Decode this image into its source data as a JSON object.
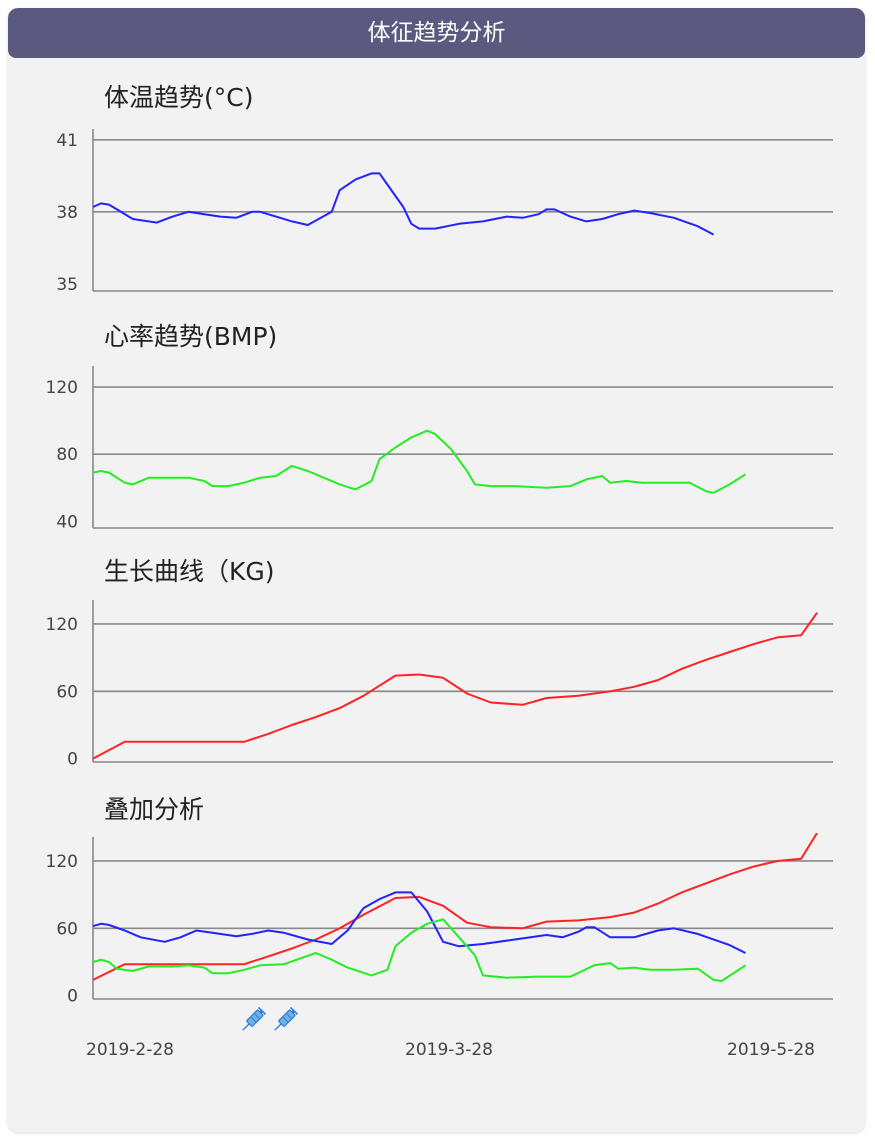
{
  "header": {
    "title": "体征趋势分析"
  },
  "panels": [
    {
      "title": "体温趋势(°C)"
    },
    {
      "title": "心率趋势(BMP)"
    },
    {
      "title": "生长曲线（KG)"
    },
    {
      "title": "叠加分析"
    }
  ],
  "x_labels": [
    "2019-2-28",
    "2019-3-28",
    "2019-5-28"
  ],
  "markers": [
    {
      "icon": "syringe-icon",
      "date": "2019-3-20"
    },
    {
      "icon": "syringe-icon",
      "date": "2019-3-24"
    }
  ],
  "colors": {
    "temperature": "#2222ff",
    "heart_rate": "#22ee22",
    "weight": "#ff2222",
    "header": "#5b5980"
  },
  "chart_data": [
    {
      "type": "line",
      "title": "体温趋势(°C)",
      "yticks": [
        41,
        38,
        35
      ],
      "ylim": [
        34.7,
        41.2
      ],
      "xlim": [
        "2019-2-28",
        "2019-6-1"
      ],
      "grid": true,
      "series": [
        {
          "color": "#2222ff",
          "points": [
            [
              "2019-2-28",
              38.2
            ],
            [
              "2019-3-1",
              38.35
            ],
            [
              "2019-3-2",
              38.3
            ],
            [
              "2019-3-3",
              38.1
            ],
            [
              "2019-3-5",
              37.7
            ],
            [
              "2019-3-8",
              37.55
            ],
            [
              "2019-3-10",
              37.8
            ],
            [
              "2019-3-12",
              38.0
            ],
            [
              "2019-3-14",
              37.9
            ],
            [
              "2019-3-16",
              37.8
            ],
            [
              "2019-3-18",
              37.75
            ],
            [
              "2019-3-20",
              38.0
            ],
            [
              "2019-3-21",
              38.0
            ],
            [
              "2019-3-23",
              37.8
            ],
            [
              "2019-3-25",
              37.6
            ],
            [
              "2019-3-27",
              37.45
            ],
            [
              "2019-3-30",
              38.0
            ],
            [
              "2019-3-31",
              38.9
            ],
            [
              "2019-4-2",
              39.35
            ],
            [
              "2019-4-4",
              39.6
            ],
            [
              "2019-4-5",
              39.6
            ],
            [
              "2019-4-8",
              38.2
            ],
            [
              "2019-4-9",
              37.5
            ],
            [
              "2019-4-10",
              37.3
            ],
            [
              "2019-4-12",
              37.3
            ],
            [
              "2019-4-15",
              37.5
            ],
            [
              "2019-4-18",
              37.6
            ],
            [
              "2019-4-21",
              37.8
            ],
            [
              "2019-4-23",
              37.75
            ],
            [
              "2019-4-25",
              37.9
            ],
            [
              "2019-4-26",
              38.1
            ],
            [
              "2019-4-27",
              38.1
            ],
            [
              "2019-4-29",
              37.8
            ],
            [
              "2019-5-1",
              37.6
            ],
            [
              "2019-5-3",
              37.7
            ],
            [
              "2019-5-5",
              37.9
            ],
            [
              "2019-5-7",
              38.05
            ],
            [
              "2019-5-9",
              37.95
            ],
            [
              "2019-5-12",
              37.75
            ],
            [
              "2019-5-15",
              37.4
            ],
            [
              "2019-5-17",
              37.05
            ]
          ]
        }
      ]
    },
    {
      "type": "line",
      "title": "心率趋势(BMP)",
      "yticks": [
        120,
        80,
        40
      ],
      "ylim": [
        36,
        129
      ],
      "xlim": [
        "2019-2-28",
        "2019-6-1"
      ],
      "grid": true,
      "series": [
        {
          "color": "#22ee22",
          "points": [
            [
              "2019-2-28",
              69
            ],
            [
              "2019-3-1",
              70
            ],
            [
              "2019-3-2",
              69
            ],
            [
              "2019-3-3",
              66
            ],
            [
              "2019-3-4",
              63
            ],
            [
              "2019-3-5",
              62
            ],
            [
              "2019-3-7",
              66
            ],
            [
              "2019-3-10",
              66
            ],
            [
              "2019-3-12",
              66
            ],
            [
              "2019-3-14",
              64
            ],
            [
              "2019-3-15",
              61
            ],
            [
              "2019-3-17",
              61
            ],
            [
              "2019-3-19",
              63
            ],
            [
              "2019-3-21",
              66
            ],
            [
              "2019-3-23",
              67
            ],
            [
              "2019-3-25",
              73
            ],
            [
              "2019-3-27",
              70
            ],
            [
              "2019-3-29",
              66
            ],
            [
              "2019-3-31",
              62
            ],
            [
              "2019-4-2",
              59
            ],
            [
              "2019-4-4",
              64
            ],
            [
              "2019-4-5",
              77
            ],
            [
              "2019-4-7",
              84
            ],
            [
              "2019-4-9",
              90
            ],
            [
              "2019-4-11",
              94
            ],
            [
              "2019-4-12",
              92
            ],
            [
              "2019-4-14",
              83
            ],
            [
              "2019-4-16",
              70
            ],
            [
              "2019-4-17",
              62
            ],
            [
              "2019-4-19",
              61
            ],
            [
              "2019-4-22",
              61
            ],
            [
              "2019-4-26",
              60
            ],
            [
              "2019-4-29",
              61
            ],
            [
              "2019-5-1",
              65
            ],
            [
              "2019-5-3",
              67
            ],
            [
              "2019-5-4",
              63
            ],
            [
              "2019-5-6",
              64
            ],
            [
              "2019-5-8",
              63
            ],
            [
              "2019-5-12",
              63
            ],
            [
              "2019-5-14",
              63
            ],
            [
              "2019-5-16",
              58
            ],
            [
              "2019-5-17",
              57
            ],
            [
              "2019-5-19",
              62
            ],
            [
              "2019-5-21",
              68
            ]
          ]
        }
      ]
    },
    {
      "type": "line",
      "title": "生长曲线（KG)",
      "yticks": [
        120,
        60,
        0
      ],
      "ylim": [
        -3,
        136
      ],
      "xlim": [
        "2019-2-28",
        "2019-6-1"
      ],
      "grid": true,
      "series": [
        {
          "color": "#ff2222",
          "points": [
            [
              "2019-2-28",
              0
            ],
            [
              "2019-3-4",
              15
            ],
            [
              "2019-3-8",
              15
            ],
            [
              "2019-3-12",
              15
            ],
            [
              "2019-3-16",
              15
            ],
            [
              "2019-3-19",
              15
            ],
            [
              "2019-3-22",
              22
            ],
            [
              "2019-3-25",
              30
            ],
            [
              "2019-3-28",
              37
            ],
            [
              "2019-3-31",
              45
            ],
            [
              "2019-4-3",
              56
            ],
            [
              "2019-4-7",
              74
            ],
            [
              "2019-4-10",
              75
            ],
            [
              "2019-4-13",
              72
            ],
            [
              "2019-4-16",
              58
            ],
            [
              "2019-4-19",
              50
            ],
            [
              "2019-4-23",
              48
            ],
            [
              "2019-4-26",
              54
            ],
            [
              "2019-4-30",
              56
            ],
            [
              "2019-5-4",
              60
            ],
            [
              "2019-5-7",
              64
            ],
            [
              "2019-5-10",
              70
            ],
            [
              "2019-5-13",
              80
            ],
            [
              "2019-5-16",
              88
            ],
            [
              "2019-5-19",
              95
            ],
            [
              "2019-5-22",
              102
            ],
            [
              "2019-5-25",
              108
            ],
            [
              "2019-5-28",
              110
            ],
            [
              "2019-5-30",
              130
            ]
          ]
        }
      ]
    },
    {
      "type": "line",
      "title": "叠加分析",
      "yticks": [
        120,
        60,
        0
      ],
      "ylim": [
        -3,
        136
      ],
      "xlim": [
        "2019-2-28",
        "2019-6-1"
      ],
      "grid": true,
      "series": [
        {
          "color": "#ff2222",
          "points": [
            [
              "2019-2-28",
              14
            ],
            [
              "2019-3-4",
              28
            ],
            [
              "2019-3-8",
              28
            ],
            [
              "2019-3-12",
              28
            ],
            [
              "2019-3-16",
              28
            ],
            [
              "2019-3-19",
              28
            ],
            [
              "2019-3-22",
              35
            ],
            [
              "2019-3-25",
              42
            ],
            [
              "2019-3-28",
              50
            ],
            [
              "2019-3-31",
              60
            ],
            [
              "2019-4-3",
              72
            ],
            [
              "2019-4-7",
              87
            ],
            [
              "2019-4-10",
              88
            ],
            [
              "2019-4-13",
              80
            ],
            [
              "2019-4-16",
              65
            ],
            [
              "2019-4-19",
              61
            ],
            [
              "2019-4-23",
              60
            ],
            [
              "2019-4-26",
              66
            ],
            [
              "2019-4-30",
              67
            ],
            [
              "2019-5-4",
              70
            ],
            [
              "2019-5-7",
              74
            ],
            [
              "2019-5-10",
              82
            ],
            [
              "2019-5-13",
              92
            ],
            [
              "2019-5-16",
              100
            ],
            [
              "2019-5-19",
              108
            ],
            [
              "2019-5-22",
              115
            ],
            [
              "2019-5-25",
              120
            ],
            [
              "2019-5-28",
              122
            ],
            [
              "2019-5-30",
              145
            ]
          ]
        },
        {
          "color": "#2222ff",
          "points": [
            [
              "2019-2-28",
              62
            ],
            [
              "2019-3-1",
              64
            ],
            [
              "2019-3-2",
              63
            ],
            [
              "2019-3-4",
              58
            ],
            [
              "2019-3-6",
              52
            ],
            [
              "2019-3-9",
              48
            ],
            [
              "2019-3-11",
              52
            ],
            [
              "2019-3-13",
              58
            ],
            [
              "2019-3-15",
              56
            ],
            [
              "2019-3-18",
              53
            ],
            [
              "2019-3-20",
              55
            ],
            [
              "2019-3-22",
              58
            ],
            [
              "2019-3-24",
              56
            ],
            [
              "2019-3-27",
              50
            ],
            [
              "2019-3-30",
              46
            ],
            [
              "2019-4-1",
              58
            ],
            [
              "2019-4-3",
              78
            ],
            [
              "2019-4-5",
              86
            ],
            [
              "2019-4-7",
              92
            ],
            [
              "2019-4-9",
              92
            ],
            [
              "2019-4-11",
              75
            ],
            [
              "2019-4-13",
              48
            ],
            [
              "2019-4-15",
              44
            ],
            [
              "2019-4-18",
              46
            ],
            [
              "2019-4-22",
              50
            ],
            [
              "2019-4-26",
              54
            ],
            [
              "2019-4-28",
              52
            ],
            [
              "2019-4-30",
              57
            ],
            [
              "2019-5-1",
              61
            ],
            [
              "2019-5-2",
              61
            ],
            [
              "2019-5-4",
              52
            ],
            [
              "2019-5-7",
              52
            ],
            [
              "2019-5-10",
              58
            ],
            [
              "2019-5-12",
              60
            ],
            [
              "2019-5-15",
              55
            ],
            [
              "2019-5-19",
              45
            ],
            [
              "2019-5-21",
              38
            ]
          ]
        },
        {
          "color": "#22ee22",
          "points": [
            [
              "2019-2-28",
              30
            ],
            [
              "2019-3-1",
              32
            ],
            [
              "2019-3-2",
              30
            ],
            [
              "2019-3-3",
              24
            ],
            [
              "2019-3-5",
              22
            ],
            [
              "2019-3-7",
              26
            ],
            [
              "2019-3-10",
              26
            ],
            [
              "2019-3-12",
              27
            ],
            [
              "2019-3-14",
              25
            ],
            [
              "2019-3-15",
              20
            ],
            [
              "2019-3-17",
              20
            ],
            [
              "2019-3-19",
              23
            ],
            [
              "2019-3-21",
              27
            ],
            [
              "2019-3-24",
              28
            ],
            [
              "2019-3-26",
              33
            ],
            [
              "2019-3-28",
              38
            ],
            [
              "2019-3-30",
              32
            ],
            [
              "2019-4-1",
              25
            ],
            [
              "2019-4-4",
              18
            ],
            [
              "2019-4-6",
              23
            ],
            [
              "2019-4-7",
              44
            ],
            [
              "2019-4-9",
              56
            ],
            [
              "2019-4-11",
              64
            ],
            [
              "2019-4-13",
              68
            ],
            [
              "2019-4-15",
              52
            ],
            [
              "2019-4-17",
              36
            ],
            [
              "2019-4-18",
              18
            ],
            [
              "2019-4-21",
              16
            ],
            [
              "2019-4-25",
              17
            ],
            [
              "2019-4-29",
              17
            ],
            [
              "2019-5-2",
              27
            ],
            [
              "2019-5-4",
              29
            ],
            [
              "2019-5-5",
              24
            ],
            [
              "2019-5-7",
              25
            ],
            [
              "2019-5-9",
              23
            ],
            [
              "2019-5-12",
              23
            ],
            [
              "2019-5-15",
              24
            ],
            [
              "2019-5-17",
              14
            ],
            [
              "2019-5-18",
              13
            ],
            [
              "2019-5-21",
              27
            ]
          ]
        }
      ]
    }
  ]
}
